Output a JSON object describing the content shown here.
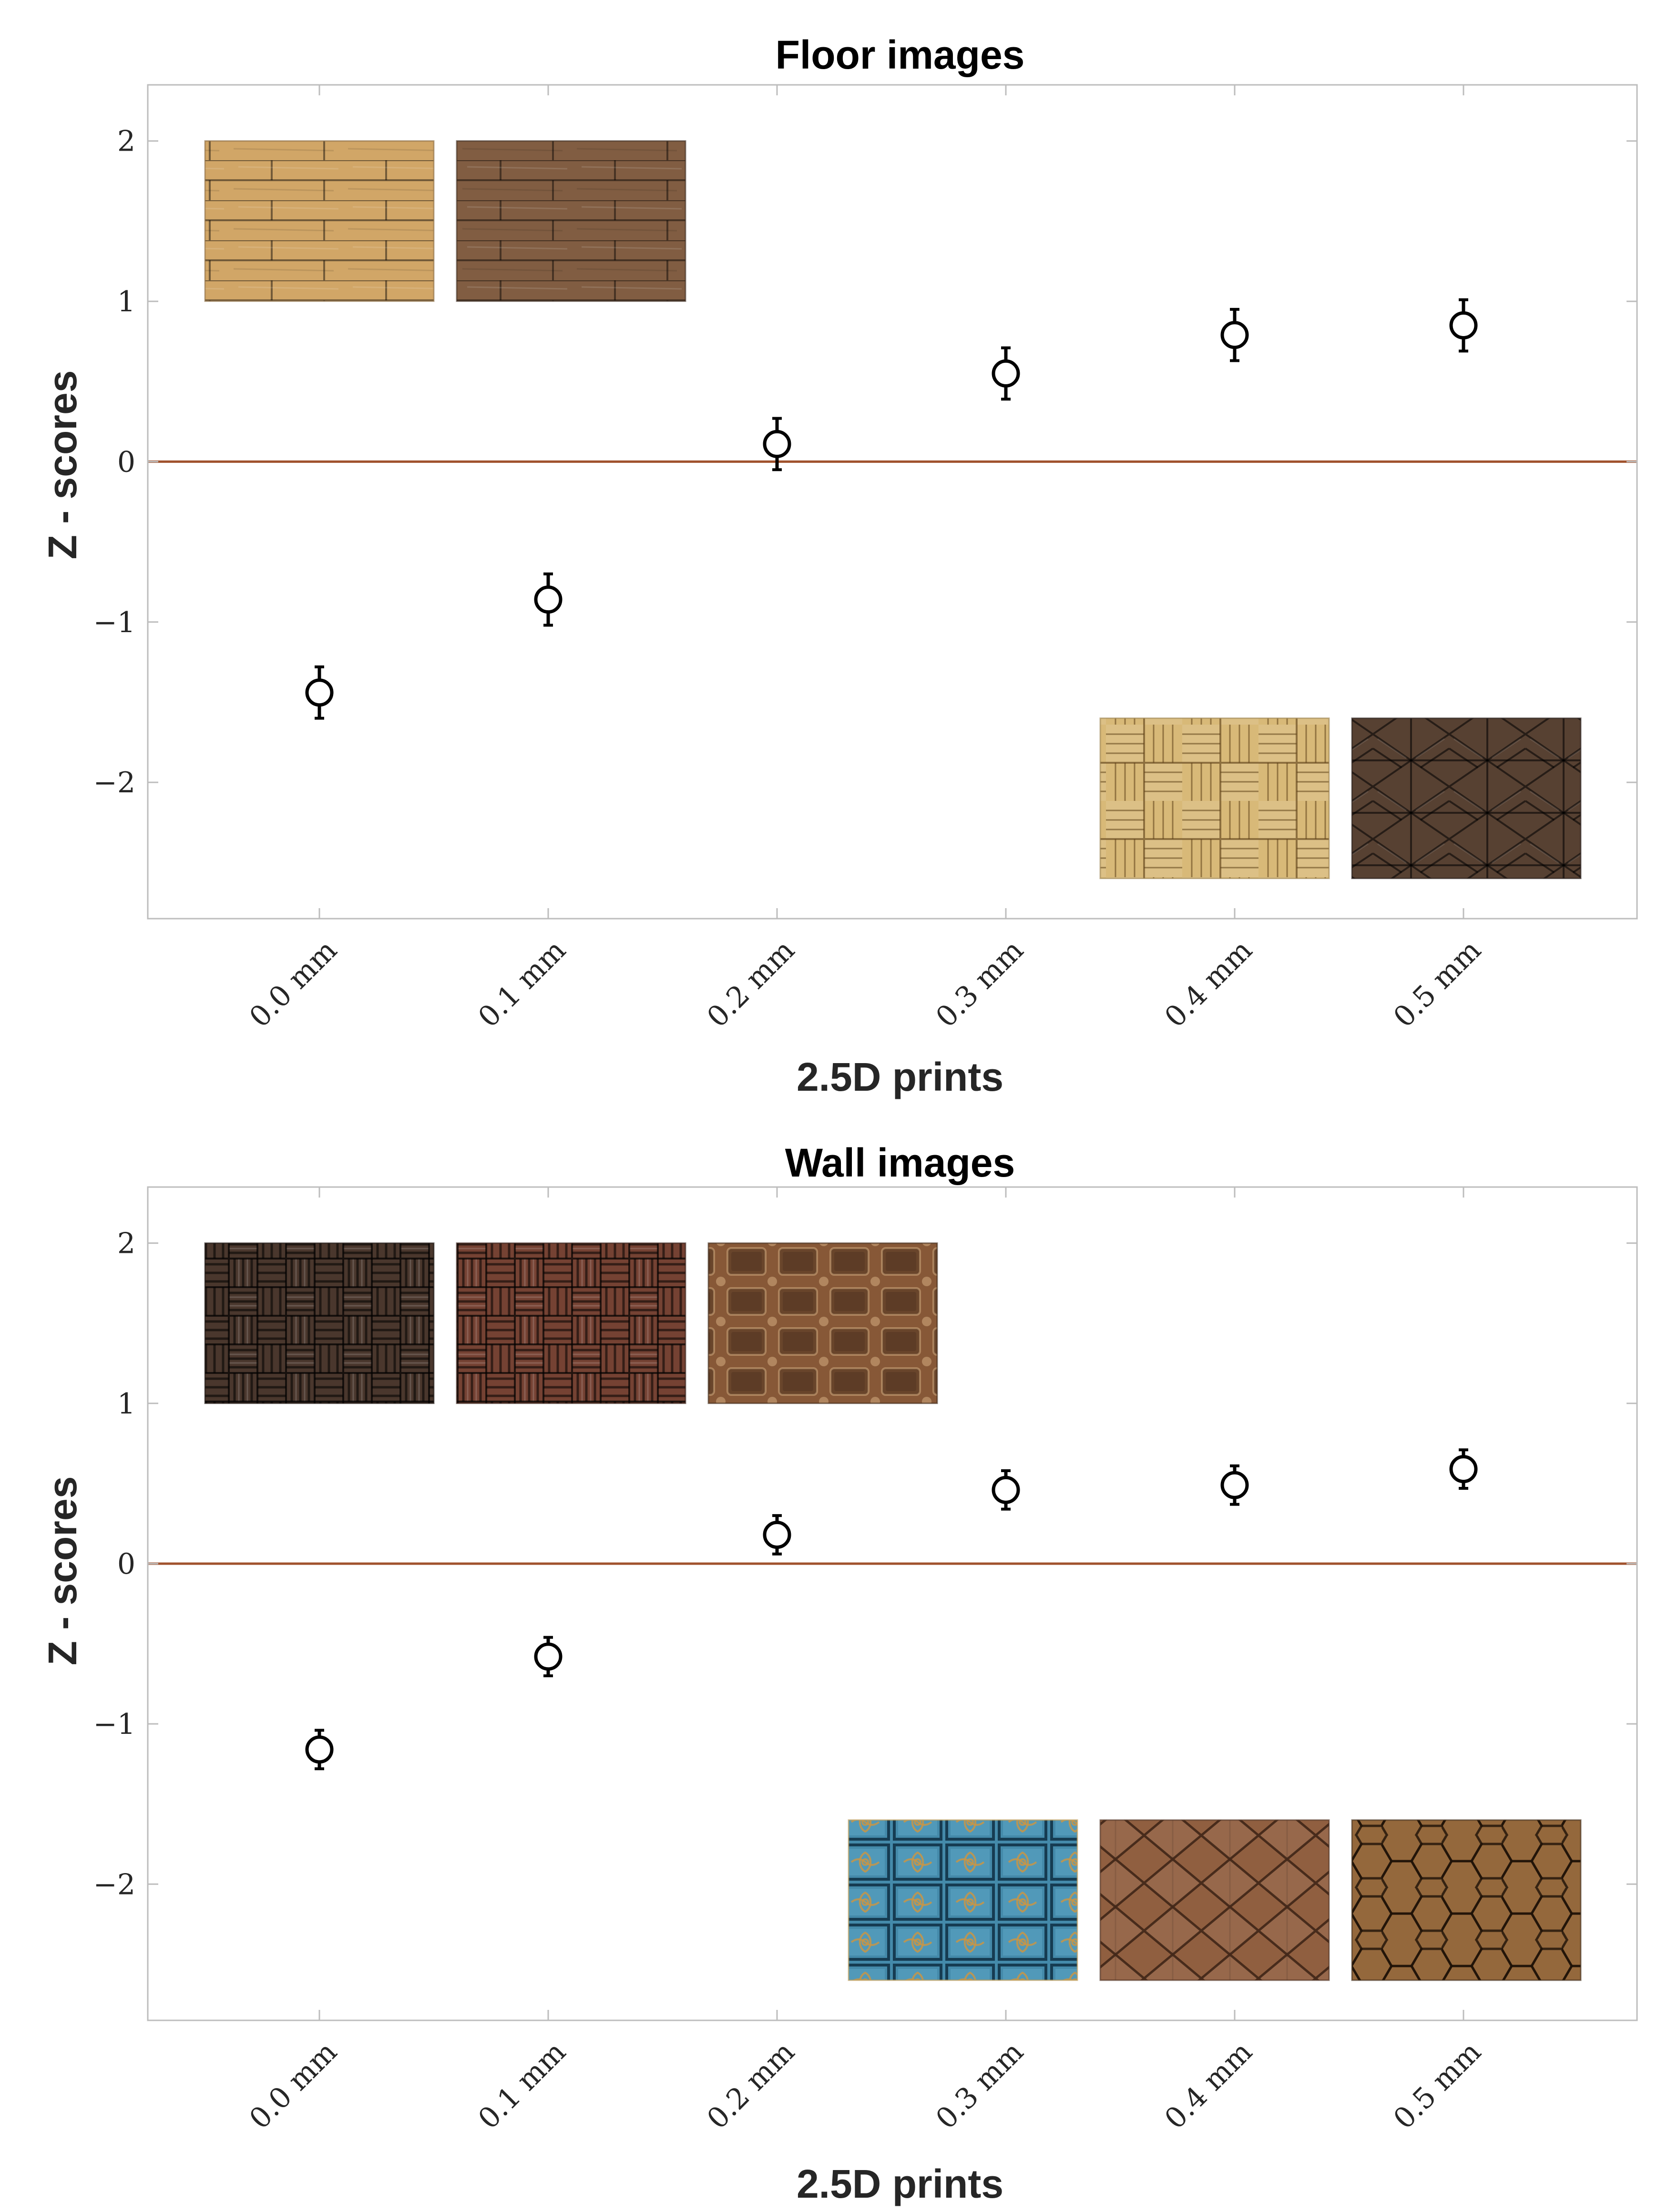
{
  "chart_data": [
    {
      "type": "scatter",
      "title": "Floor images",
      "xlabel": "2.5D prints",
      "ylabel": "Z - scores",
      "categories": [
        "0.0 mm",
        "0.1 mm",
        "0.2 mm",
        "0.3 mm",
        "0.4 mm",
        "0.5 mm"
      ],
      "yticks": [
        -2,
        -1,
        0,
        1,
        2
      ],
      "ylim": [
        -2.85,
        2.35
      ],
      "reference_line": 0,
      "grid": false,
      "series": [
        {
          "values": [
            -1.44,
            -0.86,
            0.11,
            0.55,
            0.79,
            0.85
          ],
          "error": [
            0.16,
            0.16,
            0.16,
            0.16,
            0.16,
            0.16
          ]
        }
      ],
      "textures": [
        {
          "name": "light-wood-planks",
          "colors": [
            "#d6ac6e",
            "#c89a5c",
            "#8a6a40"
          ],
          "pattern": "planks",
          "anchor": "top-left",
          "slot": 0
        },
        {
          "name": "dark-wood-planks",
          "colors": [
            "#8a6448",
            "#70503a",
            "#3a2a1e"
          ],
          "pattern": "planks",
          "anchor": "top-left",
          "slot": 1
        },
        {
          "name": "light-parquet",
          "colors": [
            "#ddbf7e",
            "#cfae6c",
            "#9a7e4a"
          ],
          "pattern": "basket",
          "anchor": "bottom-right",
          "slot": 1
        },
        {
          "name": "dark-herringbone",
          "colors": [
            "#5e4838",
            "#4a3628",
            "#1e1410"
          ],
          "pattern": "chevron",
          "anchor": "bottom-right",
          "slot": 0
        }
      ]
    },
    {
      "type": "scatter",
      "title": "Wall images",
      "xlabel": "2.5D prints",
      "ylabel": "Z - scores",
      "categories": [
        "0.0 mm",
        "0.1 mm",
        "0.2 mm",
        "0.3 mm",
        "0.4 mm",
        "0.5 mm"
      ],
      "yticks": [
        -2,
        -1,
        0,
        1,
        2
      ],
      "ylim": [
        -2.85,
        2.35
      ],
      "reference_line": 0,
      "grid": false,
      "series": [
        {
          "values": [
            -1.16,
            -0.58,
            0.18,
            0.46,
            0.49,
            0.59
          ],
          "error": [
            0.12,
            0.12,
            0.12,
            0.12,
            0.12,
            0.12
          ]
        }
      ],
      "textures": [
        {
          "name": "dark-weave-panel",
          "colors": [
            "#3a2820",
            "#6a5248",
            "#140c08"
          ],
          "pattern": "weave",
          "anchor": "top-left",
          "slot": 0
        },
        {
          "name": "red-wood-weave",
          "colors": [
            "#6a3a2c",
            "#8a5442",
            "#2e1810"
          ],
          "pattern": "weave",
          "anchor": "top-left",
          "slot": 1
        },
        {
          "name": "coffered-wood",
          "colors": [
            "#7a4e30",
            "#a06c46",
            "#3a2414"
          ],
          "pattern": "coffer",
          "anchor": "top-left",
          "slot": 2
        },
        {
          "name": "blue-ornate-tiles",
          "colors": [
            "#3a7fa0",
            "#5aa0be",
            "#c09a50"
          ],
          "pattern": "ornate",
          "anchor": "bottom-right",
          "slot": 2
        },
        {
          "name": "wood-diamond-shingles",
          "colors": [
            "#8a5a3c",
            "#9c6a48",
            "#4a2c1c"
          ],
          "pattern": "diamond",
          "anchor": "bottom-right",
          "slot": 1
        },
        {
          "name": "wood-hexagon-tiles",
          "colors": [
            "#9a6e40",
            "#8a5e36",
            "#3a2614"
          ],
          "pattern": "hex",
          "anchor": "bottom-right",
          "slot": 0
        }
      ]
    }
  ],
  "style": {
    "marker_color": "#000000",
    "reference_line_color": "#a0522d",
    "axis_box_color": "#bdbdbd",
    "tick_text_color": "#262626"
  }
}
